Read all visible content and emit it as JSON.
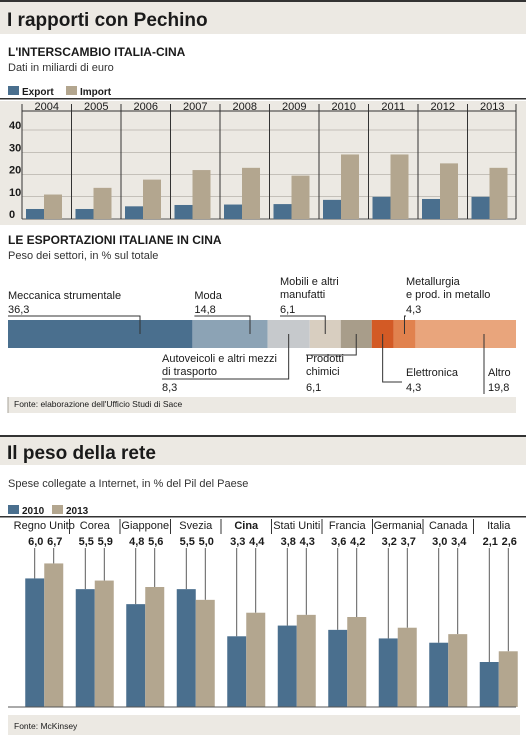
{
  "section1": {
    "title": "I rapporti con Pechino"
  },
  "section2": {
    "title": "Il peso della rete"
  },
  "colors": {
    "export": "#4a6f8e",
    "import": "#b3a68f",
    "s2010": "#4a6f8e",
    "s2013": "#b3a68f",
    "panel": "#ece9e3",
    "rule": "#a7a39a"
  },
  "chart_data": [
    {
      "type": "bar",
      "title": "L'INTERSCAMBIO ITALIA-CINA",
      "subtitle": "Dati in miliardi di euro",
      "categories": [
        "2004",
        "2005",
        "2006",
        "2007",
        "2008",
        "2009",
        "2010",
        "2011",
        "2012",
        "2013"
      ],
      "series": [
        {
          "name": "Export",
          "values": [
            4.5,
            4.5,
            5.7,
            6.3,
            6.5,
            6.7,
            8.6,
            10.0,
            9.0,
            10.0
          ]
        },
        {
          "name": "Import",
          "values": [
            11.0,
            14.0,
            17.7,
            22.0,
            23.0,
            19.5,
            29.0,
            29.0,
            25.0,
            23.0
          ]
        }
      ],
      "yticks": [
        "0",
        "10",
        "20",
        "30",
        "40"
      ],
      "ylim": [
        0,
        40
      ],
      "legend": "top-left"
    },
    {
      "type": "bar",
      "title": "LE ESPORTAZIONI ITALIANE IN CINA",
      "subtitle": "Peso dei settori, in % sul totale",
      "segments": [
        {
          "label": "Meccanica strumentale",
          "value": 36.3,
          "value_label": "36,3",
          "color": "#4a6f8e"
        },
        {
          "label": "Moda",
          "value": 14.8,
          "value_label": "14,8",
          "color": "#8ca3b5"
        },
        {
          "label": "Autoveicoli e altri mezzi di trasporto",
          "value": 8.3,
          "value_label": "8,3",
          "color": "#c6c9cc"
        },
        {
          "label": "Mobili e altri manufatti",
          "value": 6.1,
          "value_label": "6,1",
          "color": "#d8cec0"
        },
        {
          "label": "Prodotti chimici",
          "value": 6.1,
          "value_label": "6,1",
          "color": "#a89d8a"
        },
        {
          "label": "Elettronica",
          "value": 4.3,
          "value_label": "4,3",
          "color": "#d35a25"
        },
        {
          "label": "Metallurgia e prod. in metallo",
          "value": 4.3,
          "value_label": "4,3",
          "color": "#e1824e"
        },
        {
          "label": "Altro",
          "value": 19.8,
          "value_label": "19,8",
          "color": "#e9a57c"
        }
      ],
      "source": "Fonte: elaborazione dell'Ufficio Studi di Sace"
    },
    {
      "type": "bar",
      "subtitle": "Spese collegate a Internet, in % del Pil del Paese",
      "categories": [
        "Regno Unito",
        "Corea",
        "Giappone",
        "Svezia",
        "Cina",
        "Stati Uniti",
        "Francia",
        "Germania",
        "Canada",
        "Italia"
      ],
      "series": [
        {
          "name": "2010",
          "values": [
            6.0,
            5.5,
            4.8,
            5.5,
            3.3,
            3.8,
            3.6,
            3.2,
            3.0,
            2.1
          ],
          "labels": [
            "6,0",
            "5,5",
            "4,8",
            "5,5",
            "3,3",
            "3,8",
            "3,6",
            "3,2",
            "3,0",
            "2,1"
          ]
        },
        {
          "name": "2013",
          "values": [
            6.7,
            5.9,
            5.6,
            5.0,
            4.4,
            4.3,
            4.2,
            3.7,
            3.4,
            2.6
          ],
          "labels": [
            "6,7",
            "5,9",
            "5,6",
            "5,0",
            "4,4",
            "4,3",
            "4,2",
            "3,7",
            "3,4",
            "2,6"
          ]
        }
      ],
      "highlight": "Cina",
      "legend": "top-left",
      "source": "Fonte: McKinsey"
    }
  ]
}
